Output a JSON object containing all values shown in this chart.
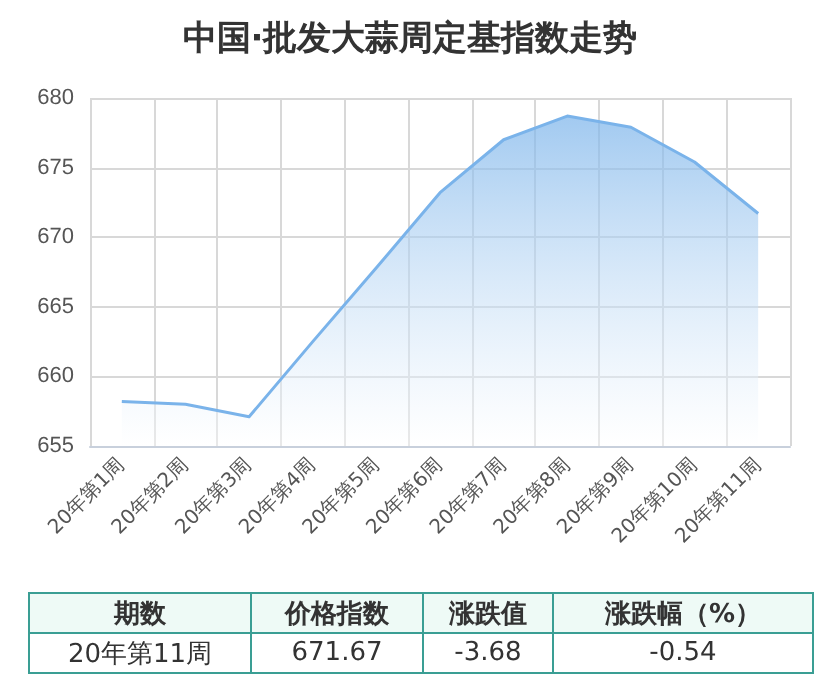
{
  "chart_data": {
    "type": "area",
    "title": "中国·批发大蒜周定基指数走势",
    "categories": [
      "20年第1周",
      "20年第2周",
      "20年第3周",
      "20年第4周",
      "20年第5周",
      "20年第6周",
      "20年第7周",
      "20年第8周",
      "20年第9周",
      "20年第10周",
      "20年第11周"
    ],
    "series": [
      {
        "color": "#7ab3ea",
        "values": [
          658.2,
          658.0,
          657.1,
          662.5,
          667.8,
          673.2,
          677.0,
          678.7,
          677.9,
          675.4,
          671.7
        ]
      }
    ],
    "ylim": [
      655,
      680
    ],
    "yticks": [
      655,
      660,
      665,
      670,
      675,
      680
    ],
    "grid": true,
    "marker": "none",
    "annotations": [
      "期数",
      "价格指数",
      "涨跌值",
      "涨跌幅（%）",
      "20年第11周",
      "671.67",
      "-3.68",
      "-0.54"
    ]
  }
}
